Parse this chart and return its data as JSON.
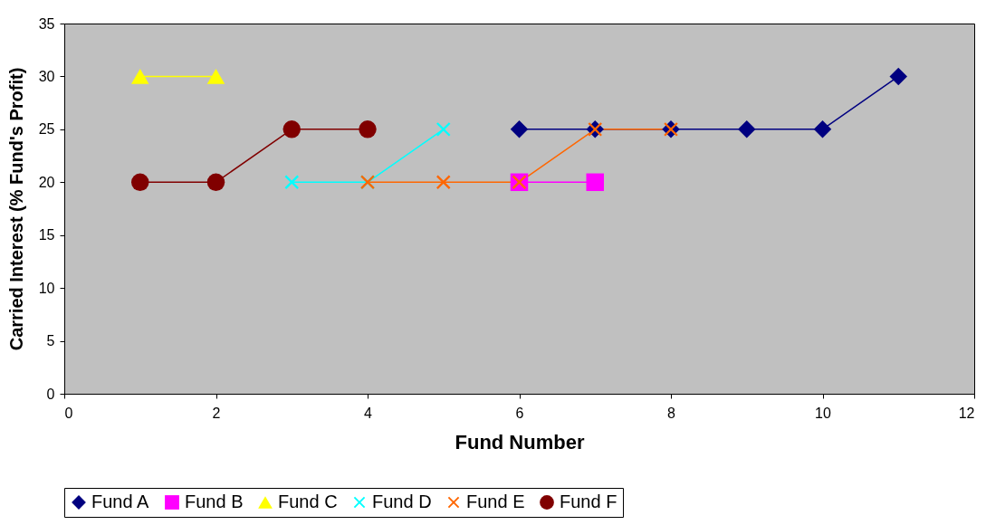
{
  "chart_data": {
    "type": "line",
    "xlabel": "Fund Number",
    "ylabel": "Carried Interest (% Fund's Profit)",
    "xlim": [
      0,
      12
    ],
    "xticks": [
      0,
      2,
      4,
      6,
      8,
      10,
      12
    ],
    "ylim": [
      0,
      35
    ],
    "yticks": [
      0,
      5,
      10,
      15,
      20,
      25,
      30,
      35
    ],
    "grid": false,
    "legend": "bottom",
    "series": [
      {
        "name": "Fund A",
        "color": "#000080",
        "marker": "diamond",
        "x": [
          6,
          7,
          8,
          9,
          10,
          11
        ],
        "values": [
          25,
          25,
          25,
          25,
          25,
          30
        ]
      },
      {
        "name": "Fund B",
        "color": "#ff00ff",
        "marker": "square",
        "x": [
          6,
          7
        ],
        "values": [
          20,
          20
        ]
      },
      {
        "name": "Fund C",
        "color": "#ffff00",
        "marker": "triangle",
        "x": [
          1,
          2
        ],
        "values": [
          30,
          30
        ]
      },
      {
        "name": "Fund D",
        "color": "#00ffff",
        "marker": "cross",
        "x": [
          3,
          4,
          5
        ],
        "values": [
          20,
          20,
          25
        ]
      },
      {
        "name": "Fund E",
        "color": "#ff6600",
        "marker": "cross",
        "x": [
          4,
          5,
          6,
          7,
          8
        ],
        "values": [
          20,
          20,
          20,
          25,
          25
        ]
      },
      {
        "name": "Fund F",
        "color": "#800000",
        "marker": "circle",
        "x": [
          1,
          2,
          3,
          4
        ],
        "values": [
          20,
          20,
          25,
          25
        ]
      }
    ]
  }
}
